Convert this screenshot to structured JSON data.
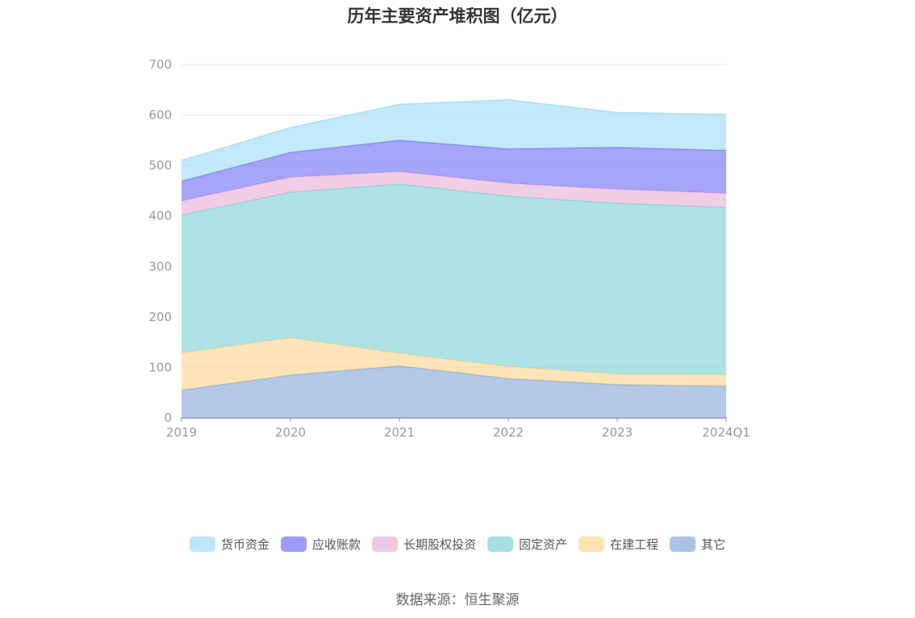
{
  "chart_data": {
    "type": "area",
    "stacked": true,
    "title": "历年主要资产堆积图（亿元）",
    "categories": [
      "2019",
      "2020",
      "2021",
      "2022",
      "2023",
      "2024Q1"
    ],
    "ylim": [
      0,
      700
    ],
    "yticks": [
      0,
      100,
      200,
      300,
      400,
      500,
      600,
      700
    ],
    "grid": true,
    "legend_position": "bottom",
    "series": [
      {
        "name": "其它",
        "color": "#8fafdc",
        "values": [
          55,
          85,
          103,
          78,
          66,
          63
        ]
      },
      {
        "name": "在建工程",
        "color": "#fed898",
        "values": [
          74,
          74,
          25,
          24,
          21,
          23
        ]
      },
      {
        "name": "固定资产",
        "color": "#86d6d8",
        "values": [
          273,
          288,
          335,
          337,
          338,
          331
        ]
      },
      {
        "name": "长期股权投资",
        "color": "#e9b7da",
        "values": [
          28,
          30,
          25,
          26,
          28,
          28
        ]
      },
      {
        "name": "应收账款",
        "color": "#7b7bf6",
        "values": [
          39,
          49,
          62,
          68,
          83,
          85
        ]
      },
      {
        "name": "货币资金",
        "color": "#a8dff8",
        "values": [
          41,
          49,
          71,
          97,
          69,
          71
        ]
      }
    ],
    "legend_order": [
      "货币资金",
      "应收账款",
      "长期股权投资",
      "固定资产",
      "在建工程",
      "其它"
    ]
  },
  "source": "数据来源：恒生聚源"
}
